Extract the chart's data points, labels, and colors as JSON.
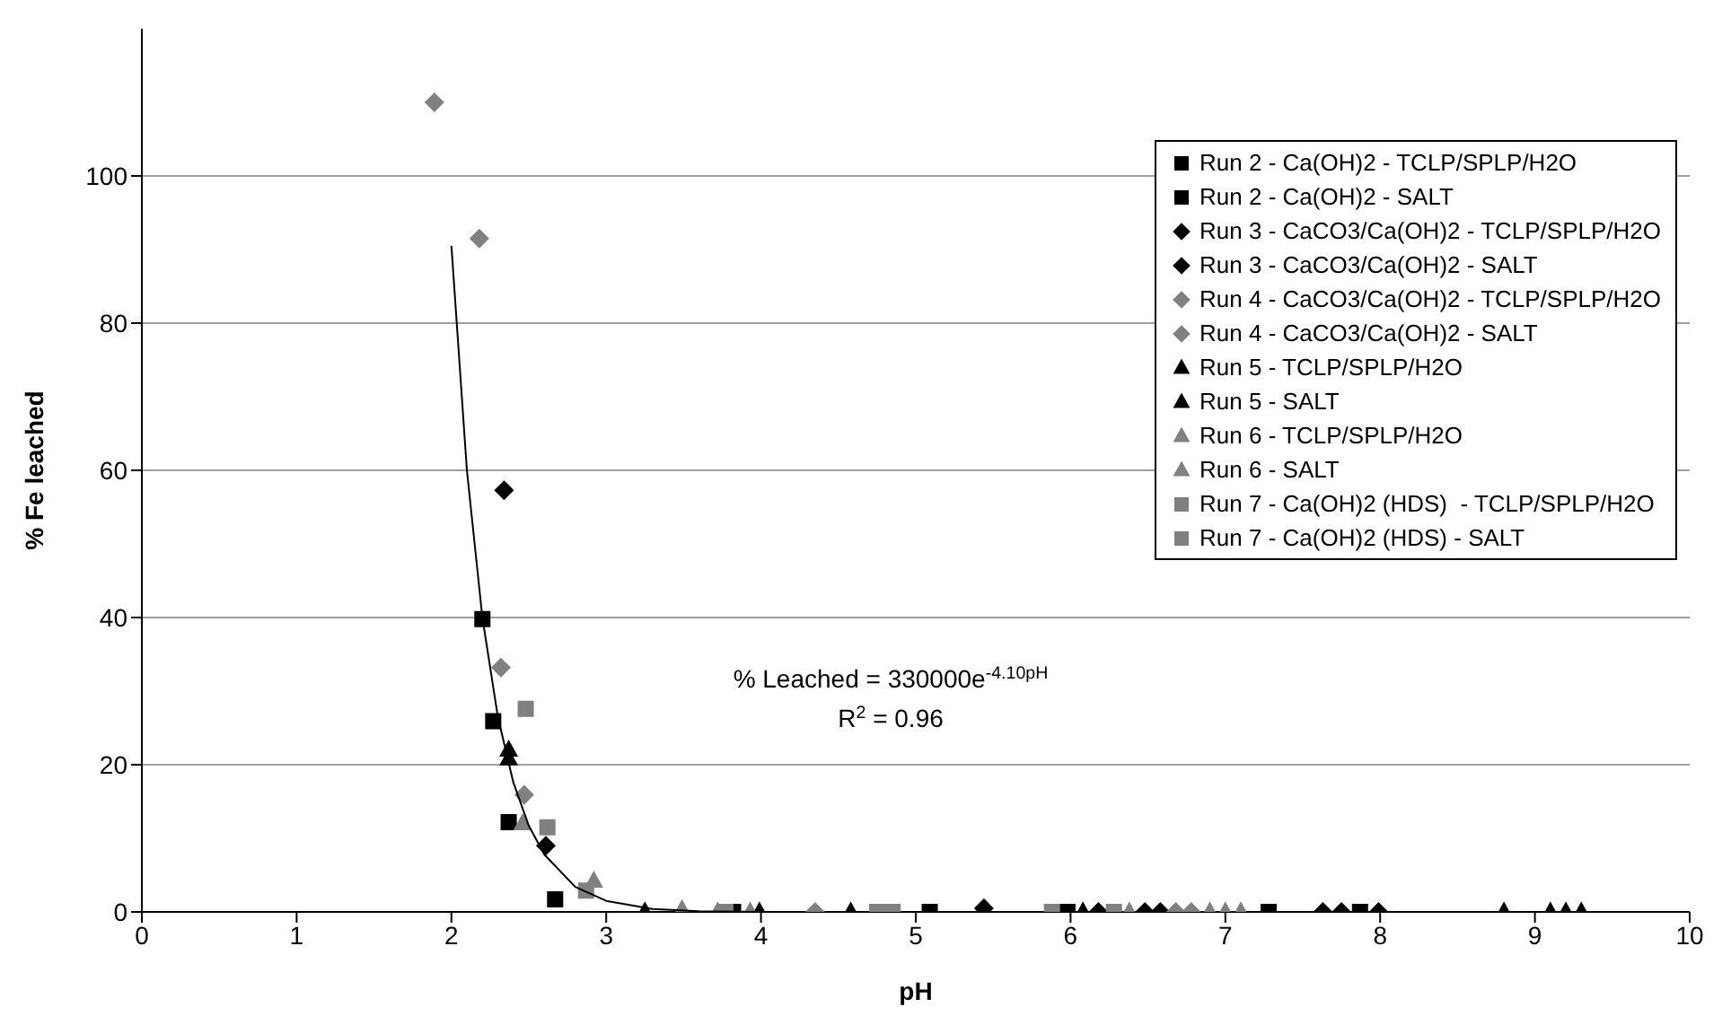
{
  "chart_data": {
    "type": "scatter",
    "xlabel": "pH",
    "ylabel": "% Fe leached",
    "xlim": [
      0,
      10
    ],
    "xticks": [
      0,
      1,
      2,
      3,
      4,
      5,
      6,
      7,
      8,
      9,
      10
    ],
    "ylim": [
      0,
      120
    ],
    "yticks": [
      0,
      20,
      40,
      60,
      80,
      100
    ],
    "grid": "y",
    "legend": "top right",
    "annotations": [
      "% Leached = 330000e$^{-4.10pH}$",
      "R$^{2}$ = 0.96"
    ],
    "series": [
      {
        "name": "Run 2 - Ca(OH)2 - TCLP/SPLP/H2O",
        "color": "#000000",
        "marker": "square",
        "x": [
          3.82,
          5.09,
          7.28,
          7.87
        ],
        "values": [
          0,
          0,
          0,
          0
        ]
      },
      {
        "name": "Run 2 - Ca(OH)2 - SALT",
        "color": "#000000",
        "marker": "square",
        "x": [
          2.2,
          2.27,
          2.37,
          2.67,
          5.98
        ],
        "values": [
          39.8,
          25.9,
          12.2,
          1.7,
          0
        ]
      },
      {
        "name": "Run 3 - CaCO3/Ca(OH)2 - TCLP/SPLP/H2O",
        "color": "#000000",
        "marker": "diamond",
        "x": [
          6.58,
          7.63,
          7.75,
          7.99
        ],
        "values": [
          0,
          0,
          0,
          0
        ]
      },
      {
        "name": "Run 3 - CaCO3/Ca(OH)2 - SALT",
        "color": "#000000",
        "marker": "diamond",
        "x": [
          2.34,
          2.61,
          5.44,
          6.18,
          6.48
        ],
        "values": [
          57.3,
          9,
          0.5,
          0,
          0
        ]
      },
      {
        "name": "Run 4 - CaCO3/Ca(OH)2 - TCLP/SPLP/H2O",
        "color": "#808080",
        "marker": "diamond",
        "x": [
          6.68,
          6.78
        ],
        "values": [
          0,
          0
        ]
      },
      {
        "name": "Run 4 - CaCO3/Ca(OH)2 - SALT",
        "color": "#808080",
        "marker": "diamond",
        "x": [
          1.89,
          2.18,
          2.32,
          2.47,
          4.35
        ],
        "values": [
          110,
          91.5,
          33.2,
          15.9,
          0
        ]
      },
      {
        "name": "Run 5 - TCLP/SPLP/H2O",
        "color": "#000000",
        "marker": "triangle",
        "x": [
          4.58,
          8.8,
          9.1,
          9.2,
          9.3
        ],
        "values": [
          0,
          0,
          0,
          0,
          0
        ]
      },
      {
        "name": "Run 5 - SALT",
        "color": "#000000",
        "marker": "triangle",
        "x": [
          2.37,
          2.37,
          3.25,
          3.99,
          6.08
        ],
        "values": [
          22,
          20.8,
          0,
          0,
          0
        ]
      },
      {
        "name": "Run 6 - TCLP/SPLP/H2O",
        "color": "#808080",
        "marker": "triangle",
        "x": [
          6.9,
          7.0,
          7.1
        ],
        "values": [
          0,
          0,
          0
        ]
      },
      {
        "name": "Run 6 - SALT",
        "color": "#808080",
        "marker": "triangle",
        "x": [
          2.46,
          2.92,
          3.49,
          3.72,
          3.93,
          6.38
        ],
        "values": [
          12,
          4.2,
          0.3,
          0,
          0,
          0
        ]
      },
      {
        "name": "Run 7 - Ca(OH)2 (HDS)  - TCLP/SPLP/H2O",
        "color": "#808080",
        "marker": "square",
        "x": [
          4.75,
          4.85,
          6.28
        ],
        "values": [
          0,
          0,
          0
        ]
      },
      {
        "name": "Run 7 - Ca(OH)2 (HDS) - SALT",
        "color": "#808080",
        "marker": "square",
        "x": [
          2.48,
          2.62,
          2.87,
          3.77,
          5.88
        ],
        "values": [
          27.6,
          11.5,
          2.9,
          0,
          0
        ]
      },
      {
        "type": "line",
        "color": "#000000",
        "marker": "none",
        "x": [
          2.0,
          2.1,
          2.2,
          2.3,
          2.4,
          2.5,
          2.6,
          2.8,
          3.0,
          3.3,
          3.6,
          4.0
        ],
        "values": [
          90.5,
          60,
          40,
          26.5,
          17.6,
          11.7,
          7.8,
          3.4,
          1.5,
          0.4,
          0.1,
          0
        ]
      }
    ]
  }
}
